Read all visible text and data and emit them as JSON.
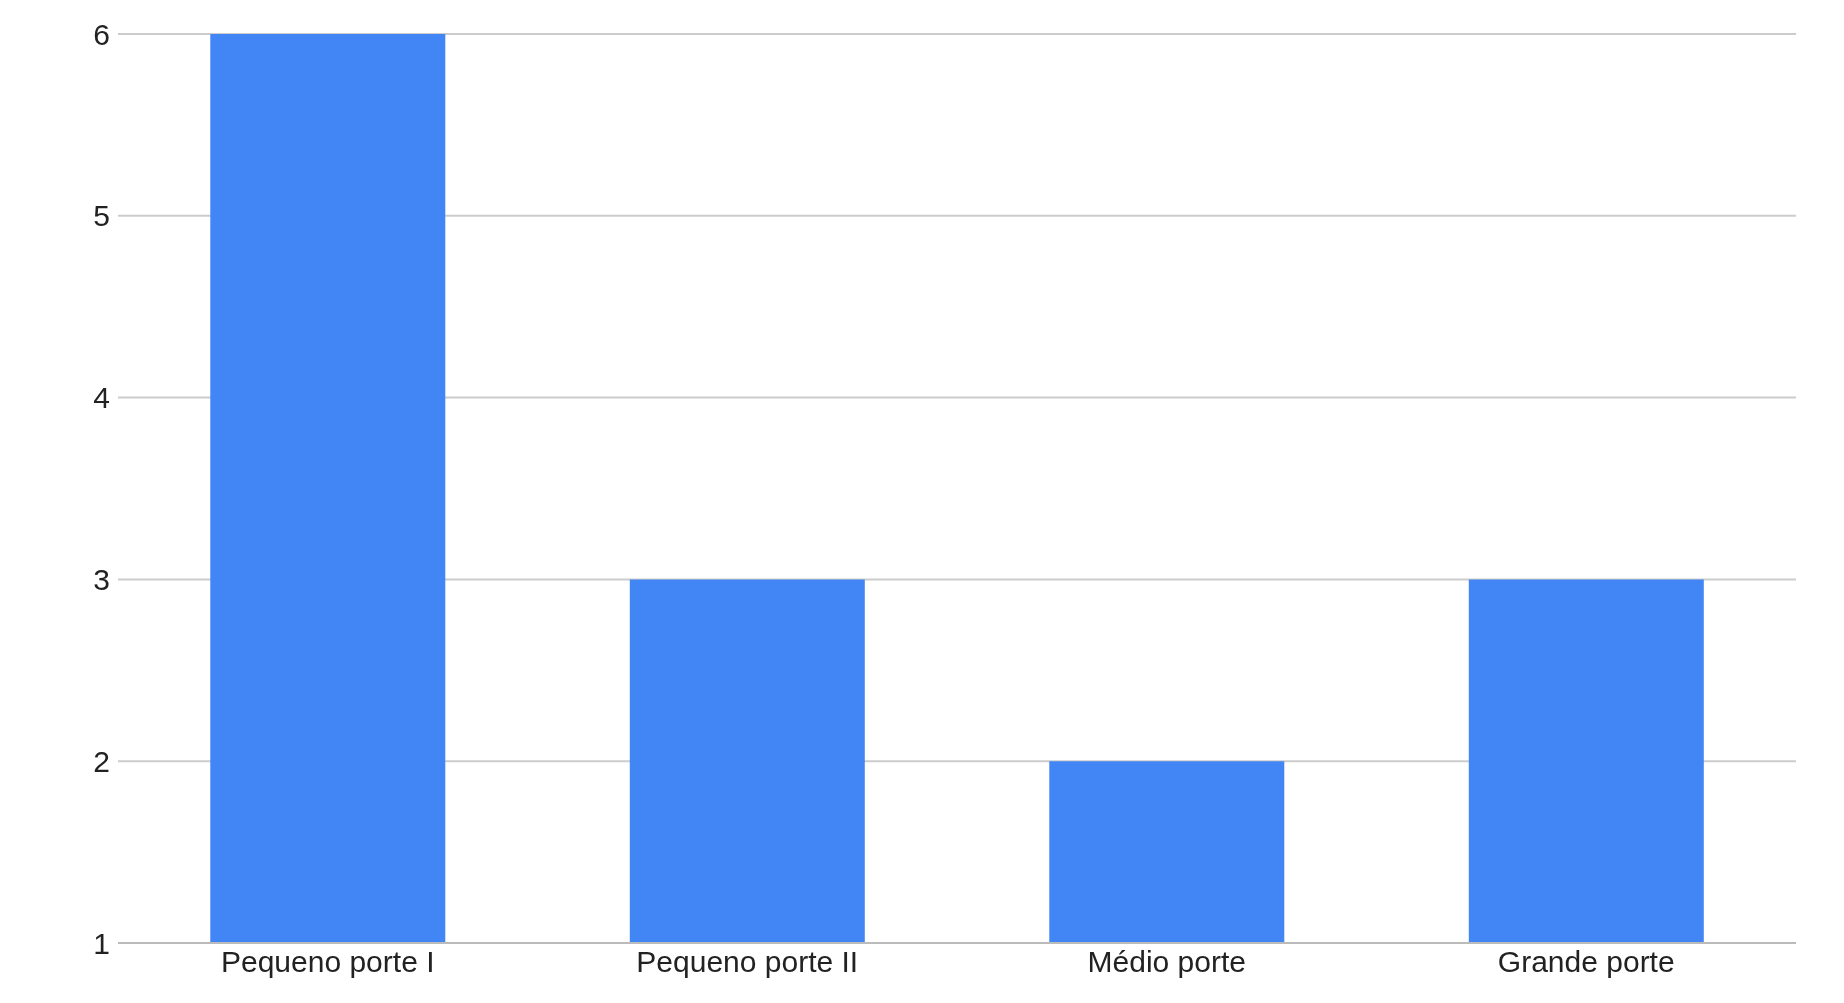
{
  "chart_data": {
    "type": "bar",
    "categories": [
      "Pequeno porte I",
      "Pequeno porte II",
      "Médio porte",
      "Grande porte"
    ],
    "values": [
      6,
      3,
      2,
      3
    ],
    "color": "#4285f4",
    "ylim": [
      1,
      6
    ],
    "yticks": [
      1,
      2,
      3,
      4,
      5,
      6
    ],
    "grid": "y"
  }
}
